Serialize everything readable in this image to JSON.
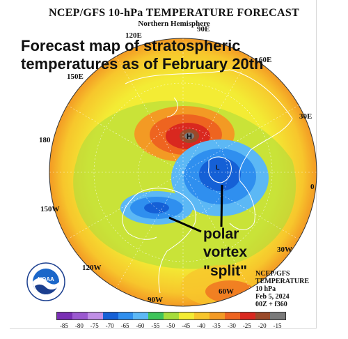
{
  "header": {
    "title": "NCEP/GFS 10-hPa TEMPERATURE FORECAST",
    "subtitle": "Northern Hemisphere"
  },
  "annotations": {
    "main_line1": "Forecast map of stratospheric",
    "main_line2": "temperatures as of February 20th",
    "polar_line1": "polar",
    "polar_line2": "vortex",
    "polar_line3": "\"split\""
  },
  "longitudes": [
    "90E",
    "120E",
    "60E",
    "150E",
    "30E",
    "180",
    "0",
    "150W",
    "30W",
    "120W",
    "60W",
    "90W"
  ],
  "info": {
    "source": "NCEP/GFS",
    "variable": "TEMPERATURE",
    "level": "10 hPa",
    "date": "Feb 5, 2024",
    "run": "00Z + f360"
  },
  "low_label": "L",
  "high_label": "H",
  "colorbar": {
    "labels": [
      "-85",
      "-80",
      "-75",
      "-70",
      "-65",
      "-60",
      "-55",
      "-50",
      "-45",
      "-40",
      "-35",
      "-30",
      "-25",
      "-20",
      "-15"
    ],
    "colors": [
      "#7a2fb5",
      "#9b59d0",
      "#c08fe6",
      "#1560d6",
      "#2f8fef",
      "#5cb8f5",
      "#3ec45a",
      "#a6dd3c",
      "#f3ec34",
      "#f7c62c",
      "#f39a24",
      "#ee6420",
      "#d9281f",
      "#9a4a2a",
      "#7a7a7a"
    ]
  },
  "logo": {
    "icon": "noaa-logo-icon",
    "text": "NOAA"
  }
}
